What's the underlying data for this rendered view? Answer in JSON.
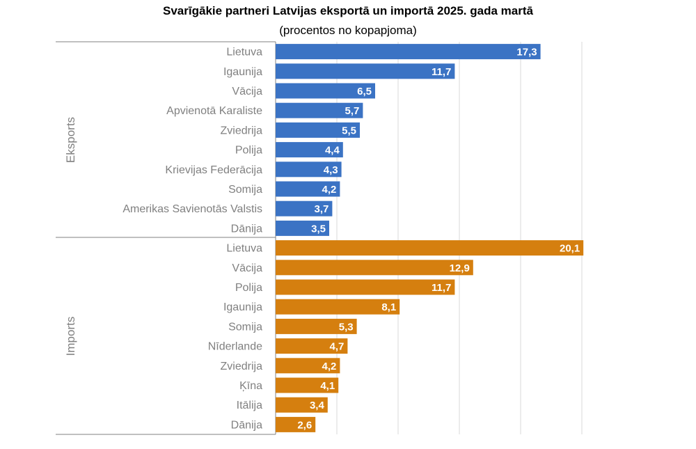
{
  "chart_data": {
    "type": "bar",
    "orientation": "horizontal",
    "title": "Svarīgākie partneri Latvijas eksportā un importā 2025. gada martā",
    "subtitle": "(procentos no kopapjoma)",
    "xlim": [
      0,
      22
    ],
    "grid": true,
    "groups": [
      {
        "label": "Eksports",
        "color": "#3B73C4",
        "categories": [
          "Lietuva",
          "Igaunija",
          "Vācija",
          "Apvienotā Karaliste",
          "Zviedrija",
          "Polija",
          "Krievijas Federācija",
          "Somija",
          "Amerikas Savienotās Valstis",
          "Dānija"
        ],
        "values": [
          17.3,
          11.7,
          6.5,
          5.7,
          5.5,
          4.4,
          4.3,
          4.2,
          3.7,
          3.5
        ],
        "value_labels": [
          "17,3",
          "11,7",
          "6,5",
          "5,7",
          "5,5",
          "4,4",
          "4,3",
          "4,2",
          "3,7",
          "3,5"
        ]
      },
      {
        "label": "Imports",
        "color": "#D57F0F",
        "categories": [
          "Lietuva",
          "Vācija",
          "Polija",
          "Igaunija",
          "Somija",
          "Nīderlande",
          "Zviedrija",
          "Ķīna",
          "Itālija",
          "Dānija"
        ],
        "values": [
          20.1,
          12.9,
          11.7,
          8.1,
          5.3,
          4.7,
          4.2,
          4.1,
          3.4,
          2.6
        ],
        "value_labels": [
          "20,1",
          "12,9",
          "11,7",
          "8,1",
          "5,3",
          "4,7",
          "4,2",
          "4,1",
          "3,4",
          "2,6"
        ]
      }
    ]
  }
}
